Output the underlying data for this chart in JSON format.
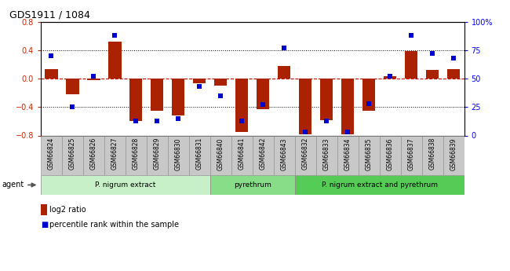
{
  "title": "GDS1911 / 1084",
  "samples": [
    "GSM66824",
    "GSM66825",
    "GSM66826",
    "GSM66827",
    "GSM66828",
    "GSM66829",
    "GSM66830",
    "GSM66831",
    "GSM66840",
    "GSM66841",
    "GSM66842",
    "GSM66843",
    "GSM66832",
    "GSM66833",
    "GSM66834",
    "GSM66835",
    "GSM66836",
    "GSM66837",
    "GSM66838",
    "GSM66839"
  ],
  "log2_ratio": [
    0.13,
    -0.22,
    -0.02,
    0.52,
    -0.6,
    -0.45,
    -0.52,
    -0.07,
    -0.1,
    -0.75,
    -0.43,
    0.18,
    -0.78,
    -0.58,
    -0.78,
    -0.45,
    0.03,
    0.39,
    0.12,
    0.13
  ],
  "percentile": [
    70,
    25,
    52,
    88,
    13,
    13,
    15,
    43,
    35,
    13,
    27,
    77,
    3,
    13,
    3,
    28,
    52,
    88,
    72,
    68
  ],
  "groups": [
    {
      "label": "P. nigrum extract",
      "start": 0,
      "end": 8
    },
    {
      "label": "pyrethrum",
      "start": 8,
      "end": 12
    },
    {
      "label": "P. nigrum extract and pyrethrum",
      "start": 12,
      "end": 20
    }
  ],
  "group_colors": [
    "#c8f0c8",
    "#88dd88",
    "#55cc55"
  ],
  "bar_color": "#aa2200",
  "dot_color": "#0000cc",
  "ylim_left": [
    -0.8,
    0.8
  ],
  "ylim_right": [
    0,
    100
  ],
  "yticks_left": [
    -0.8,
    -0.4,
    0.0,
    0.4,
    0.8
  ],
  "yticks_right": [
    0,
    25,
    50,
    75,
    100
  ],
  "ytick_labels_right": [
    "0",
    "25",
    "50",
    "75",
    "100%"
  ],
  "hlines_dotted": [
    -0.4,
    0.4
  ],
  "zero_line_color": "#cc0000",
  "dot_line_color": "#333333",
  "agent_label": "agent",
  "legend_bar": "log2 ratio",
  "legend_dot": "percentile rank within the sample",
  "plot_bg": "#f0f0f0",
  "xticklabel_bg": "#c8c8c8"
}
